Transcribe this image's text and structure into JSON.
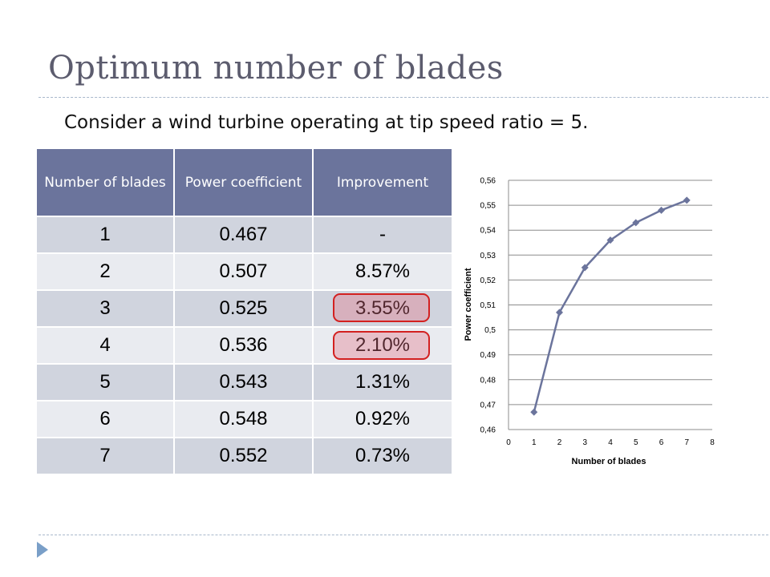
{
  "slide": {
    "title": "Optimum number of blades",
    "subtitle": "Consider a wind turbine operating at tip speed ratio = 5."
  },
  "table": {
    "headers": [
      "Number of blades",
      "Power coefficient",
      "Improvement"
    ],
    "rows": [
      [
        "1",
        "0.467",
        "-"
      ],
      [
        "2",
        "0.507",
        "8.57%"
      ],
      [
        "3",
        "0.525",
        "3.55%"
      ],
      [
        "4",
        "0.536",
        "2.10%"
      ],
      [
        "5",
        "0.543",
        "1.31%"
      ],
      [
        "6",
        "0.548",
        "0.92%"
      ],
      [
        "7",
        "0.552",
        "0.73%"
      ]
    ],
    "highlighted": [
      "3.55%",
      "2.10%"
    ],
    "header_color": "#6b749c",
    "highlight_color": "#d32020"
  },
  "chart_data": {
    "type": "line",
    "x": [
      1,
      2,
      3,
      4,
      5,
      6,
      7
    ],
    "series": [
      {
        "values": [
          0.467,
          0.507,
          0.525,
          0.536,
          0.543,
          0.548,
          0.552
        ],
        "color": "#6b749c",
        "marker": "diamond"
      }
    ],
    "xlabel": "Number of blades",
    "ylabel": "Power coefficient",
    "xlim": [
      0,
      8
    ],
    "ylim": [
      0.46,
      0.56
    ],
    "x_ticks": [
      "0",
      "1",
      "2",
      "3",
      "4",
      "5",
      "6",
      "7",
      "8"
    ],
    "y_ticks": [
      "0,46",
      "0,47",
      "0,48",
      "0,49",
      "0,5",
      "0,51",
      "0,52",
      "0,53",
      "0,54",
      "0,55",
      "0,56"
    ],
    "grid": "horizontal",
    "legend": "none"
  }
}
